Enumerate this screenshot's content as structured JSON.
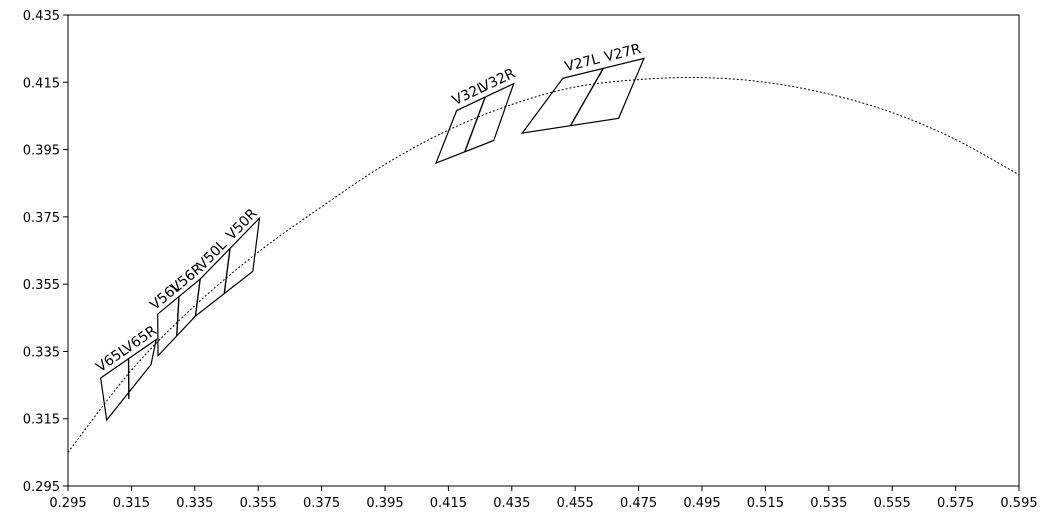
{
  "chart_data": {
    "type": "scatter",
    "title": "",
    "xlabel": "",
    "ylabel": "",
    "xlim": [
      0.295,
      0.595
    ],
    "ylim": [
      0.295,
      0.435
    ],
    "x_ticks": [
      "0.295",
      "0.315",
      "0.335",
      "0.355",
      "0.375",
      "0.395",
      "0.415",
      "0.435",
      "0.455",
      "0.475",
      "0.495",
      "0.515",
      "0.535",
      "0.555",
      "0.575",
      "0.595"
    ],
    "y_ticks": [
      "0.295",
      "0.315",
      "0.335",
      "0.355",
      "0.375",
      "0.395",
      "0.415",
      "0.435"
    ],
    "grid": false,
    "series": [
      {
        "line": "dotted",
        "x": [
          0.295,
          0.315,
          0.335,
          0.355,
          0.375,
          0.395,
          0.415,
          0.435,
          0.455,
          0.475,
          0.495,
          0.515,
          0.535,
          0.555,
          0.575,
          0.595
        ],
        "y": [
          0.305,
          0.3294,
          0.3486,
          0.3645,
          0.378,
          0.3906,
          0.4008,
          0.4084,
          0.4136,
          0.4158,
          0.4164,
          0.415,
          0.4115,
          0.406,
          0.398,
          0.3875
        ]
      }
    ],
    "quads": [
      {
        "left_label": "V65L",
        "right_label": "V65R",
        "outline": [
          [
            0.3053,
            0.3271
          ],
          [
            0.3228,
            0.3385
          ],
          [
            0.3212,
            0.3311
          ],
          [
            0.3072,
            0.3146
          ]
        ],
        "divider": [
          [
            0.3141,
            0.3328
          ],
          [
            0.3142,
            0.3209
          ]
        ]
      },
      {
        "left_label": "V56L",
        "right_label": "V56R",
        "outline": [
          [
            0.3233,
            0.3461
          ],
          [
            0.3367,
            0.3565
          ],
          [
            0.3352,
            0.3455
          ],
          [
            0.3234,
            0.3337
          ]
        ],
        "divider": [
          [
            0.33,
            0.3513
          ],
          [
            0.3293,
            0.3396
          ]
        ]
      },
      {
        "left_label": "V50L",
        "right_label": "V50R",
        "outline": [
          [
            0.3367,
            0.3565
          ],
          [
            0.3554,
            0.3746
          ],
          [
            0.3533,
            0.3588
          ],
          [
            0.3352,
            0.3455
          ]
        ],
        "divider": [
          [
            0.3461,
            0.3655
          ],
          [
            0.3443,
            0.3522
          ]
        ]
      },
      {
        "left_label": "V32L",
        "right_label": "V32R",
        "outline": [
          [
            0.4176,
            0.4066
          ],
          [
            0.4356,
            0.4146
          ],
          [
            0.4293,
            0.3977
          ],
          [
            0.4111,
            0.391
          ]
        ],
        "divider": [
          [
            0.4266,
            0.4106
          ],
          [
            0.4202,
            0.3944
          ]
        ]
      },
      {
        "left_label": "V27L",
        "right_label": "V27R",
        "outline": [
          [
            0.4511,
            0.4162
          ],
          [
            0.4767,
            0.4221
          ],
          [
            0.4687,
            0.4043
          ],
          [
            0.4383,
            0.3999
          ]
        ],
        "divider": [
          [
            0.4639,
            0.4192
          ],
          [
            0.4535,
            0.4021
          ]
        ]
      }
    ]
  }
}
